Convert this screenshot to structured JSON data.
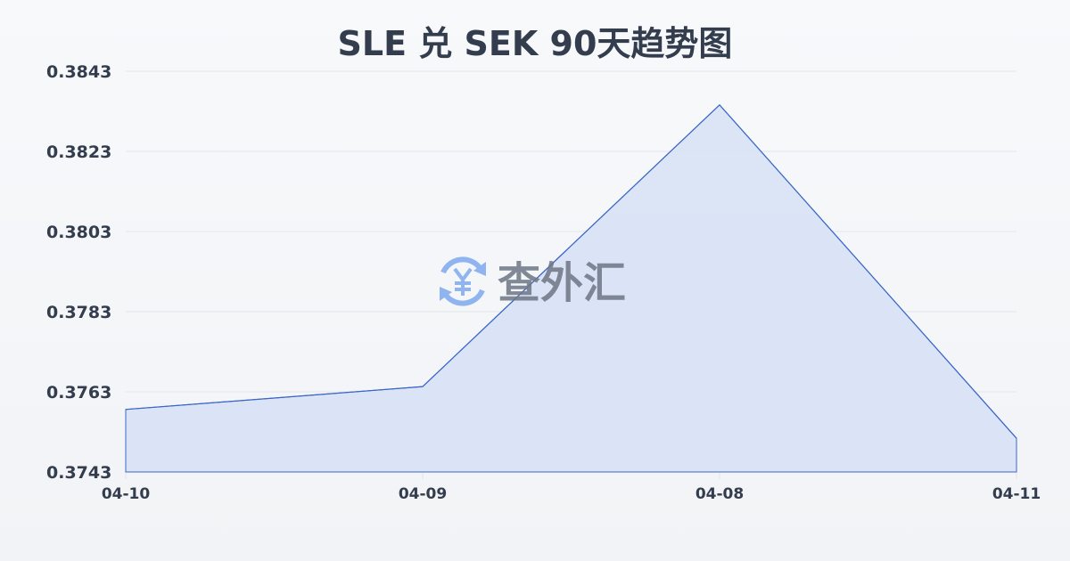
{
  "chart_data": {
    "type": "area",
    "title": "SLE 兑 SEK 90天趋势图",
    "categories": [
      "04-10",
      "04-09",
      "04-08",
      "04-11"
    ],
    "values": [
      0.37586,
      0.37643,
      0.38346,
      0.37514
    ],
    "yticks": [
      "0.3843",
      "0.3823",
      "0.3803",
      "0.3783",
      "0.3763",
      "0.3743"
    ],
    "ylim": [
      0.3743,
      0.3843
    ],
    "grid": true,
    "colors": {
      "line": "#3a66c8",
      "fill": "#d8e2f5",
      "grid": "#e3e6ea",
      "text": "#333d4d"
    }
  },
  "watermark": {
    "text": "查外汇",
    "icon": "yen-exchange-icon",
    "icon_color": "#8fb4f0"
  }
}
